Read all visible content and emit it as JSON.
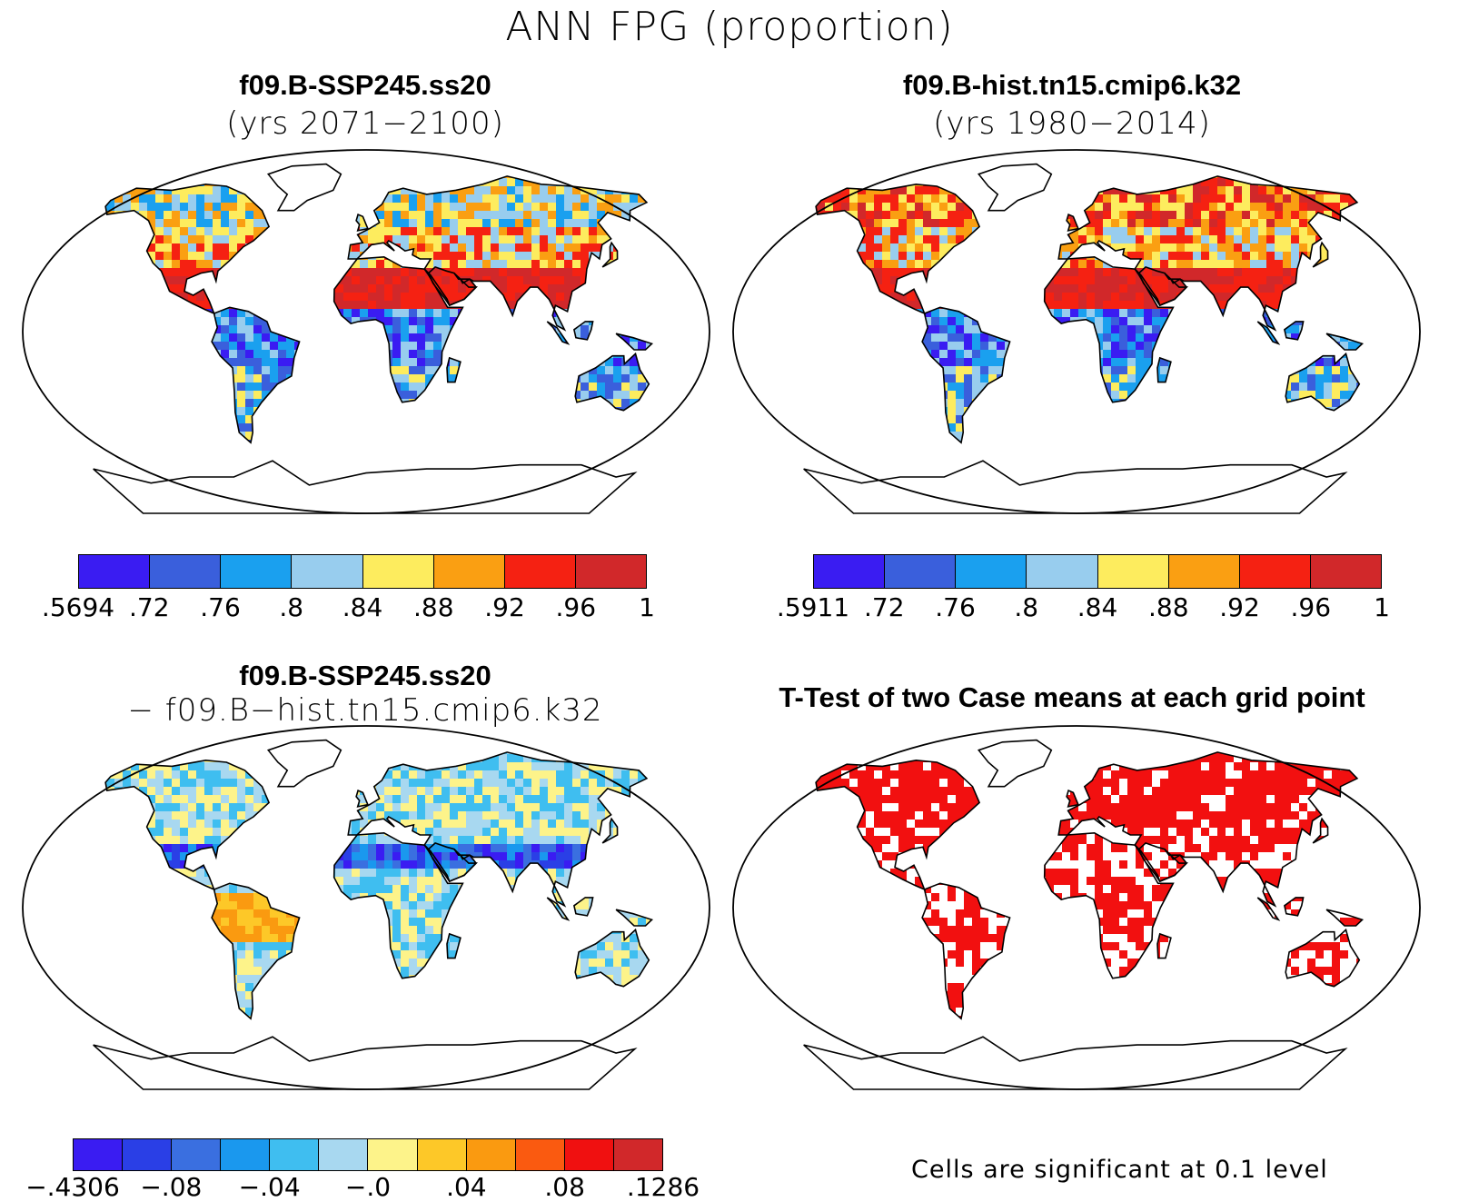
{
  "main_title": "ANN FPG (proportion)",
  "panels": [
    {
      "title": "f09.B-SSP245.ss20",
      "subtitle": "(yrs 2071−2100)"
    },
    {
      "title": "f09.B-hist.tn15.cmip6.k32",
      "subtitle": "(yrs 1980−2014)"
    },
    {
      "title": "f09.B-SSP245.ss20",
      "subtitle": "− f09.B−hist.tn15.cmip6.k32"
    },
    {
      "title": "T-Test of two Case means at each grid point",
      "subtitle": ""
    }
  ],
  "colorbars": [
    {
      "colors": [
        "#3a1cf2",
        "#3a5fdc",
        "#1aa0ef",
        "#98cdee",
        "#fdec5e",
        "#fa9f12",
        "#f52112",
        "#d1282a"
      ],
      "labels": [
        ".5694",
        ".72",
        ".76",
        ".8",
        ".84",
        ".88",
        ".92",
        ".96",
        "1"
      ]
    },
    {
      "colors": [
        "#3a1cf2",
        "#3a5fdc",
        "#1aa0ef",
        "#98cdee",
        "#fdec5e",
        "#fa9f12",
        "#f52112",
        "#d1282a"
      ],
      "labels": [
        ".5911",
        ".72",
        ".76",
        ".8",
        ".84",
        ".88",
        ".92",
        ".96",
        "1"
      ]
    },
    {
      "colors": [
        "#3a1cf2",
        "#2a3fe6",
        "#3a6fe0",
        "#1a98ee",
        "#3fbef0",
        "#a8d8f0",
        "#fdf38a",
        "#fdc828",
        "#fa9a10",
        "#fa5a10",
        "#f01010",
        "#d1282a"
      ],
      "labels": [
        "−.4306",
        "−.08",
        "−.04",
        "−.0",
        ".04",
        ".08",
        ".1286"
      ]
    }
  ],
  "significance_color": "#f21010",
  "footnote": "Cells are significant at 0.1 level"
}
